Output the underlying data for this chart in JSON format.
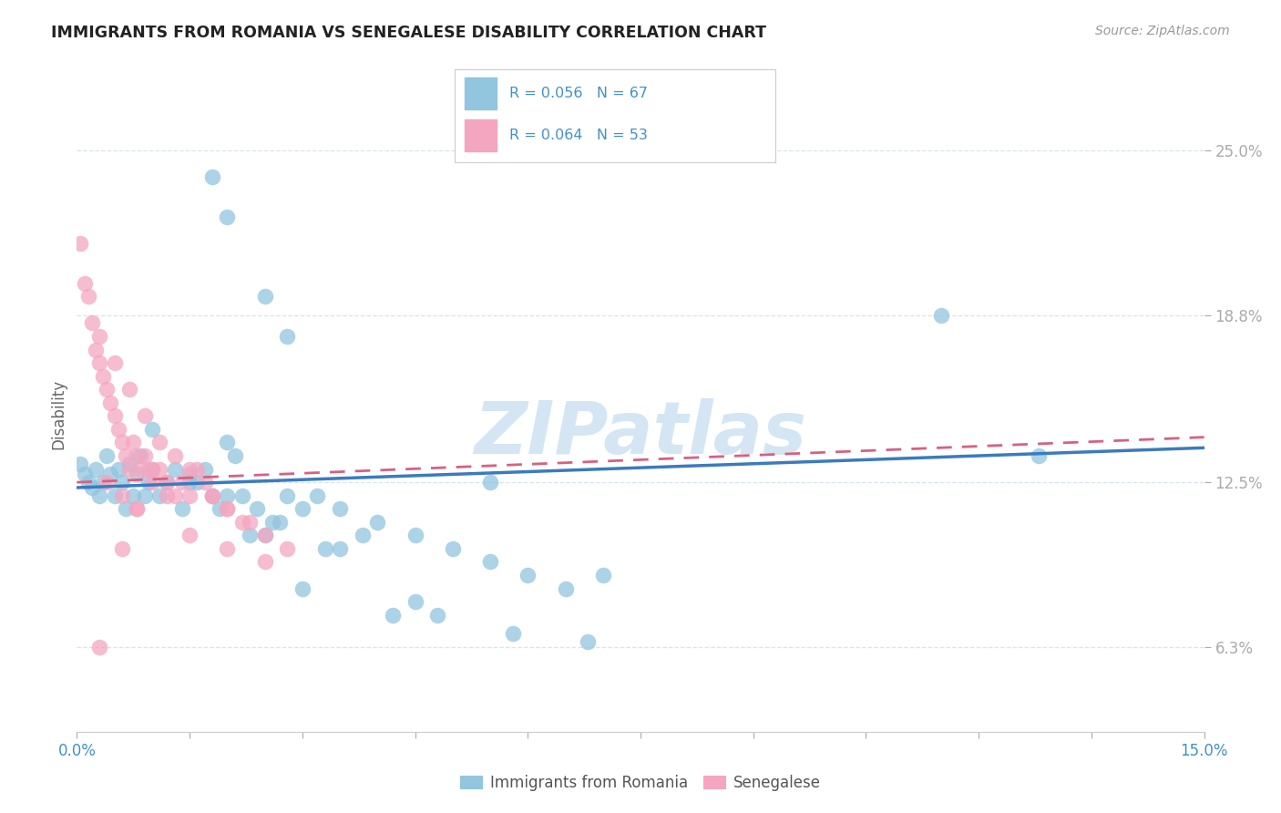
{
  "title": "IMMIGRANTS FROM ROMANIA VS SENEGALESE DISABILITY CORRELATION CHART",
  "source": "Source: ZipAtlas.com",
  "ylabel": "Disability",
  "x_min": 0.0,
  "x_max": 15.0,
  "y_min": 3.1,
  "y_max": 27.0,
  "y_ticks": [
    6.3,
    12.5,
    18.8,
    25.0
  ],
  "x_ticks": [
    0.0,
    1.5,
    3.0,
    4.5,
    6.0,
    7.5,
    9.0,
    10.5,
    12.0,
    13.5,
    15.0
  ],
  "x_tick_labels_show": [
    "0.0%",
    "15.0%"
  ],
  "y_tick_labels": [
    "6.3%",
    "12.5%",
    "18.8%",
    "25.0%"
  ],
  "legend1_label": "Immigrants from Romania",
  "legend2_label": "Senegalese",
  "r1": 0.056,
  "n1": 67,
  "r2": 0.064,
  "n2": 53,
  "color_blue": "#92c5de",
  "color_pink": "#f4a6c0",
  "color_blue_line": "#3a7bbf",
  "color_pink_line": "#d96080",
  "color_blue_text": "#4292c6",
  "watermark": "ZIPatlas",
  "blue_scatter_x": [
    1.8,
    2.0,
    2.5,
    2.8,
    0.05,
    0.1,
    0.15,
    0.2,
    0.25,
    0.3,
    0.35,
    0.4,
    0.45,
    0.5,
    0.55,
    0.6,
    0.65,
    0.7,
    0.75,
    0.8,
    0.85,
    0.9,
    0.95,
    1.0,
    1.1,
    1.2,
    1.3,
    1.4,
    1.5,
    1.6,
    1.7,
    1.8,
    1.9,
    2.0,
    2.1,
    2.2,
    2.4,
    2.6,
    2.8,
    3.0,
    3.2,
    3.5,
    3.8,
    4.0,
    4.5,
    5.0,
    5.5,
    6.0,
    6.5,
    7.0,
    11.5,
    12.8,
    3.0,
    4.2,
    2.3,
    2.7,
    3.3,
    4.8,
    5.8,
    6.8,
    1.0,
    1.5,
    2.0,
    2.5,
    3.5,
    4.5,
    5.5
  ],
  "blue_scatter_y": [
    24.0,
    22.5,
    19.5,
    18.0,
    13.2,
    12.8,
    12.5,
    12.3,
    13.0,
    12.0,
    12.5,
    13.5,
    12.8,
    12.0,
    13.0,
    12.5,
    11.5,
    13.2,
    12.0,
    12.8,
    13.5,
    12.0,
    12.5,
    13.0,
    12.0,
    12.5,
    13.0,
    11.5,
    12.8,
    12.5,
    13.0,
    12.0,
    11.5,
    12.0,
    13.5,
    12.0,
    11.5,
    11.0,
    12.0,
    11.5,
    12.0,
    11.5,
    10.5,
    11.0,
    10.5,
    10.0,
    9.5,
    9.0,
    8.5,
    9.0,
    18.8,
    13.5,
    8.5,
    7.5,
    10.5,
    11.0,
    10.0,
    7.5,
    6.8,
    6.5,
    14.5,
    12.5,
    14.0,
    10.5,
    10.0,
    8.0,
    12.5
  ],
  "pink_scatter_x": [
    0.05,
    0.1,
    0.15,
    0.2,
    0.25,
    0.3,
    0.35,
    0.4,
    0.45,
    0.5,
    0.55,
    0.6,
    0.65,
    0.7,
    0.75,
    0.8,
    0.85,
    0.9,
    0.95,
    1.0,
    1.1,
    1.2,
    1.3,
    1.4,
    1.5,
    1.6,
    1.7,
    1.8,
    2.0,
    2.2,
    2.5,
    2.8,
    0.3,
    0.5,
    0.7,
    0.9,
    1.1,
    1.3,
    1.5,
    1.8,
    2.0,
    2.3,
    0.4,
    0.6,
    0.8,
    1.0,
    1.2,
    1.5,
    2.0,
    2.5,
    0.3,
    0.6,
    0.8
  ],
  "pink_scatter_y": [
    21.5,
    20.0,
    19.5,
    18.5,
    17.5,
    17.0,
    16.5,
    16.0,
    15.5,
    15.0,
    14.5,
    14.0,
    13.5,
    13.0,
    14.0,
    13.5,
    13.0,
    13.5,
    13.0,
    12.5,
    13.0,
    12.5,
    12.0,
    12.5,
    12.0,
    13.0,
    12.5,
    12.0,
    11.5,
    11.0,
    10.5,
    10.0,
    18.0,
    17.0,
    16.0,
    15.0,
    14.0,
    13.5,
    13.0,
    12.0,
    11.5,
    11.0,
    12.5,
    12.0,
    11.5,
    13.0,
    12.0,
    10.5,
    10.0,
    9.5,
    6.3,
    10.0,
    11.5
  ],
  "trend_blue_x0": 0.0,
  "trend_blue_y0": 12.3,
  "trend_blue_x1": 15.0,
  "trend_blue_y1": 13.8,
  "trend_pink_x0": 0.0,
  "trend_pink_y0": 12.5,
  "trend_pink_x1": 15.0,
  "trend_pink_y1": 14.2
}
